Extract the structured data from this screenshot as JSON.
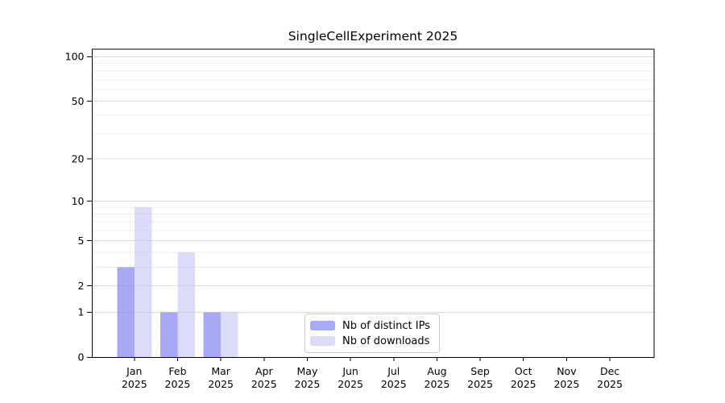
{
  "chart_data": {
    "type": "bar",
    "title": "SingleCellExperiment 2025",
    "year_label": "2025",
    "categories": [
      "Jan",
      "Feb",
      "Mar",
      "Apr",
      "May",
      "Jun",
      "Jul",
      "Aug",
      "Sep",
      "Oct",
      "Nov",
      "Dec"
    ],
    "series": [
      {
        "key": "distinct-ips",
        "name": "Nb of distinct IPs",
        "values": [
          3,
          1,
          1,
          0,
          0,
          0,
          0,
          0,
          0,
          0,
          0,
          0
        ],
        "bar_color": "rgba(134,134,241,0.72)",
        "swatch_color": "#a9a9f4"
      },
      {
        "key": "downloads",
        "name": "Nb of downloads",
        "values": [
          9,
          4,
          1,
          0,
          0,
          0,
          0,
          0,
          0,
          0,
          0,
          0
        ],
        "bar_color": "rgba(185,185,241,0.5)",
        "swatch_color": "#dcdcf8"
      }
    ],
    "yticks": [
      0,
      1,
      2,
      5,
      10,
      20,
      50,
      100
    ],
    "ylim": [
      0,
      112
    ],
    "yscale": "log1p",
    "grid": true,
    "legend_position": "lower center",
    "colors": {
      "axis": "#000000",
      "tick_label": "#000000",
      "grid_major": "#dcdcdc",
      "grid_minor": "#ededed",
      "background": "#ffffff"
    }
  }
}
